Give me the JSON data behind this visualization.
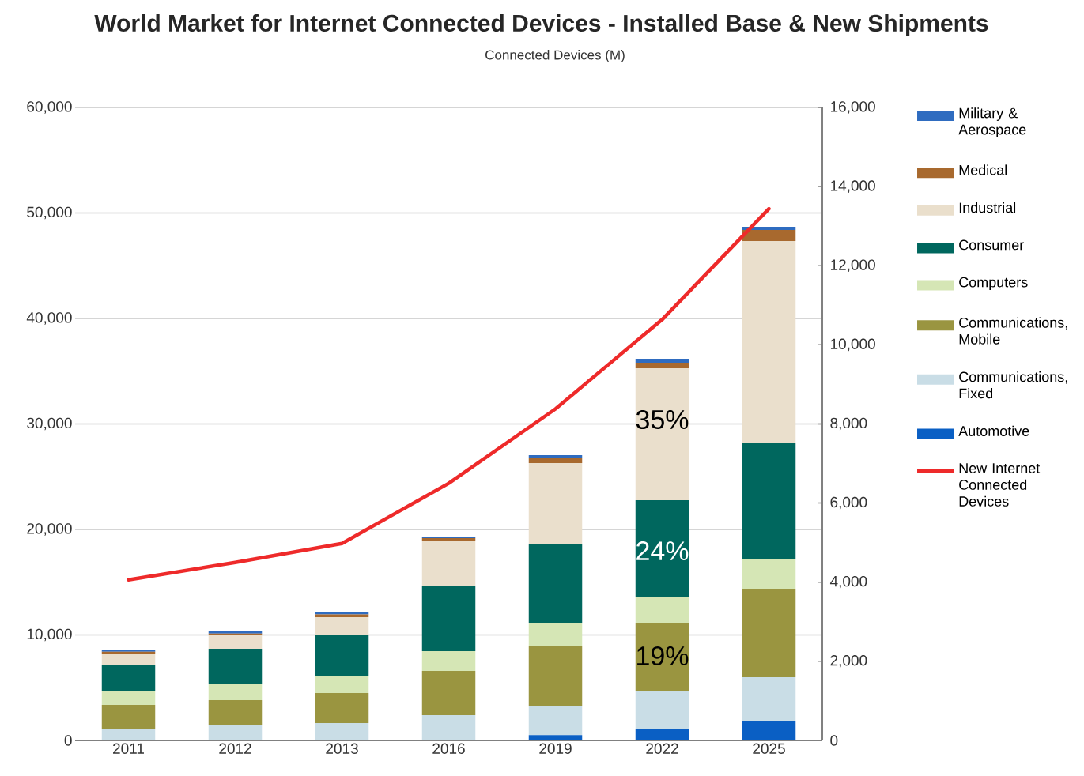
{
  "chart_data": {
    "type": "bar",
    "stacked": true,
    "title": "World Market for Internet Connected Devices - Installed Base & New Shipments",
    "subtitle": "Connected Devices (M)",
    "categories": [
      "2011",
      "2012",
      "2013",
      "2016",
      "2019",
      "2022",
      "2025"
    ],
    "series": [
      {
        "name": "Automotive",
        "color": "#0a5fc4",
        "values": [
          0,
          0,
          0,
          0,
          500,
          1120,
          1870
        ]
      },
      {
        "name": "Communications, Fixed",
        "color": "#c9dde6",
        "values": [
          1100,
          1500,
          1650,
          2400,
          2800,
          3520,
          4120
        ]
      },
      {
        "name": "Communications, Mobile",
        "color": "#9a9540",
        "values": [
          2270,
          2320,
          2840,
          4190,
          5690,
          6520,
          8390
        ]
      },
      {
        "name": "Computers",
        "color": "#d5e6b5",
        "values": [
          1270,
          1500,
          1580,
          1870,
          2170,
          2400,
          2850
        ]
      },
      {
        "name": "Consumer",
        "color": "#00675e",
        "values": [
          2550,
          3370,
          3970,
          6150,
          7490,
          9210,
          11010
        ]
      },
      {
        "name": "Industrial",
        "color": "#eadfcc",
        "values": [
          970,
          1300,
          1650,
          4270,
          7640,
          12510,
          19100
        ]
      },
      {
        "name": "Medical",
        "color": "#a8692e",
        "values": [
          250,
          150,
          250,
          300,
          530,
          530,
          1050
        ]
      },
      {
        "name": "Military & Aerospace",
        "color": "#2f6cc0",
        "values": [
          130,
          250,
          190,
          150,
          220,
          370,
          300
        ]
      },
      {
        "name": "New Internet Connected Devices",
        "color": "#ee2a2a",
        "type": "line",
        "axis": "y2",
        "values": [
          4060,
          4500,
          4980,
          6500,
          8380,
          10640,
          13440
        ]
      }
    ],
    "ylim": [
      0,
      60000
    ],
    "yticks": [
      0,
      {
        "value": 10000,
        "label": "10,000"
      },
      {
        "value": 20000,
        "label": "20,000"
      },
      {
        "value": 30000,
        "label": "30,000"
      },
      {
        "value": 40000,
        "label": "40,000"
      },
      {
        "value": 50000,
        "label": "50,000"
      },
      {
        "value": 60000,
        "label": "60,000"
      }
    ],
    "y2lim": [
      0,
      16000
    ],
    "y2ticks": [
      0,
      {
        "value": 2000,
        "label": "2,000"
      },
      {
        "value": 4000,
        "label": "4,000"
      },
      {
        "value": 6000,
        "label": "6,000"
      },
      {
        "value": 8000,
        "label": "8,000"
      },
      {
        "value": 10000,
        "label": "10,000"
      },
      {
        "value": 12000,
        "label": "12,000"
      },
      {
        "value": 14000,
        "label": "14,000"
      },
      {
        "value": 16000,
        "label": "16,000"
      }
    ],
    "annotations": [
      "35%",
      "24%",
      "19%"
    ],
    "grid": "y",
    "legend": "right"
  }
}
